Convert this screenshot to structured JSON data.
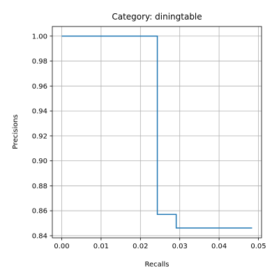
{
  "chart_data": {
    "type": "line",
    "title": "Category: diningtable",
    "xlabel": "Recalls",
    "ylabel": "Precisions",
    "xlim": [
      -0.0024,
      0.0508
    ],
    "ylim": [
      0.8383,
      1.0077
    ],
    "xticks": [
      0.0,
      0.01,
      0.02,
      0.03,
      0.04,
      0.05
    ],
    "xtick_labels": [
      "0.00",
      "0.01",
      "0.02",
      "0.03",
      "0.04",
      "0.05"
    ],
    "yticks": [
      0.84,
      0.86,
      0.88,
      0.9,
      0.92,
      0.94,
      0.96,
      0.98,
      1.0
    ],
    "ytick_labels": [
      "0.84",
      "0.86",
      "0.88",
      "0.90",
      "0.92",
      "0.94",
      "0.96",
      "0.98",
      "1.00"
    ],
    "grid": true,
    "series": [
      {
        "color": "#1f77b4",
        "x": [
          0.0,
          0.0243,
          0.0243,
          0.0291,
          0.0291,
          0.0484
        ],
        "y": [
          1.0,
          1.0,
          0.8571,
          0.8571,
          0.8462,
          0.8462
        ]
      }
    ]
  }
}
